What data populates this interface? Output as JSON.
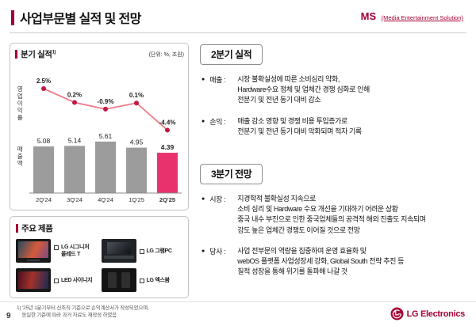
{
  "header": {
    "title": "사업부문별 실적 및 전망",
    "division_code": "MS",
    "division_name": "(Media Entertainment Solution)"
  },
  "chart_panel": {
    "title": "분기 실적",
    "title_sup": "1)",
    "unit": "(단위: %, 조원)",
    "y_axis_line": "영업이익률",
    "y_axis_bar": "매출액"
  },
  "chart_data": {
    "type": "bar+line",
    "categories": [
      "2Q'24",
      "3Q'24",
      "4Q'24",
      "1Q'25",
      "2Q'25"
    ],
    "series": [
      {
        "name": "영업이익률",
        "type": "line",
        "unit": "%",
        "values": [
          2.5,
          0.2,
          -0.9,
          0.1,
          -4.4
        ],
        "labels": [
          "2.5%",
          "0.2%",
          "-0.9%",
          "0.1%",
          "-4.4%"
        ]
      },
      {
        "name": "매출액",
        "type": "bar",
        "unit": "조원",
        "values": [
          5.08,
          5.14,
          5.61,
          4.95,
          4.39
        ]
      }
    ],
    "highlight_category": "2Q'25",
    "colors": {
      "line": "#ee7d8b",
      "dot": "#c21743",
      "bar": "#9c9c9c",
      "bar_highlight": "#e8326e",
      "accent": "#A50034"
    },
    "grid": false,
    "legend_position": "none"
  },
  "glyphs": {
    "bullet": "●"
  },
  "products": {
    "title": "주요 제품",
    "items": [
      {
        "label": "LG 시그니처\n올레드 T"
      },
      {
        "label": "LG 그램PC"
      },
      {
        "label": "LED 사이니지"
      },
      {
        "label": "LG 엑스붐"
      }
    ]
  },
  "q2": {
    "title": "2분기 실적",
    "bullets": [
      {
        "label": "매출 :",
        "text": "시장 불확실성에 따른 소비심리 약화,\nHardware수요 정체 및 업체간 경쟁 심화로 인해\n전분기 및 전년 동기 대비 감소"
      },
      {
        "label": "손익 :",
        "text": "매출 감소 영향 및 경쟁 비용 투입증가로\n전분기 및 전년 동기 대비 악화되며 적자 기록"
      }
    ]
  },
  "q3": {
    "title": "3분기 전망",
    "bullets": [
      {
        "label": "시장 :",
        "text": "지경학적 불확실성 지속으로\n소비 심리 및 Hardware 수요 개선을 기대하기 어려운 상황\n중국 내수 부진으로 인한 중국업체들의 공격적 해외 진출도 지속되며\n강도 높은 업체간 경쟁도 이어질 것으로 전망"
      },
      {
        "label": "당사 :",
        "text": "사업 전부문의 역량을 집중하여 운영 효율화 및\nwebOS 플랫폼 사업성장세 강화, Global South 전략 추진 등\n질적 성장을 통해 위기를 돌파해 나갈 것"
      }
    ]
  },
  "footer": {
    "footnote": "1) '25년 1분기부터 신조직 기준으로 손익계산서가 작성되었으며,\n    동일한 기준에 따라 과거 자료도 재작성 하였음",
    "page_number": "9",
    "logo_text": "LG Electronics"
  }
}
